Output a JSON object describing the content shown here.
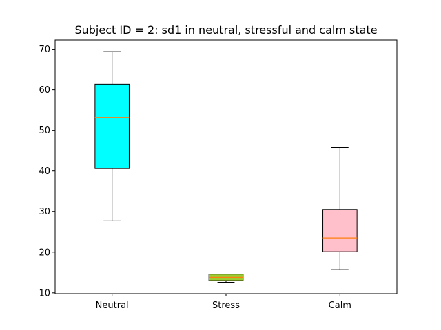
{
  "chart_data": {
    "type": "box",
    "title": "Subject ID = 2: sd1 in neutral, stressful and calm state",
    "xlabel": "",
    "ylabel": "",
    "categories": [
      "Neutral",
      "Stress",
      "Calm"
    ],
    "yticks": [
      10,
      20,
      30,
      40,
      50,
      60,
      70
    ],
    "ylim": [
      9.8,
      72.3
    ],
    "grid": false,
    "boxes": [
      {
        "category": "Neutral",
        "whisker_low": 27.7,
        "q1": 40.6,
        "median": 53.2,
        "q3": 61.4,
        "whisker_high": 69.4,
        "color": "#00ffff"
      },
      {
        "category": "Stress",
        "whisker_low": 12.6,
        "q1": 13.0,
        "median": 13.8,
        "q3": 14.6,
        "whisker_high": 14.6,
        "color": "#9acd32"
      },
      {
        "category": "Calm",
        "whisker_low": 15.7,
        "q1": 20.1,
        "median": 23.5,
        "q3": 30.5,
        "whisker_high": 45.8,
        "color": "#ffc0cb"
      }
    ],
    "median_color": "#ff7f0e"
  }
}
